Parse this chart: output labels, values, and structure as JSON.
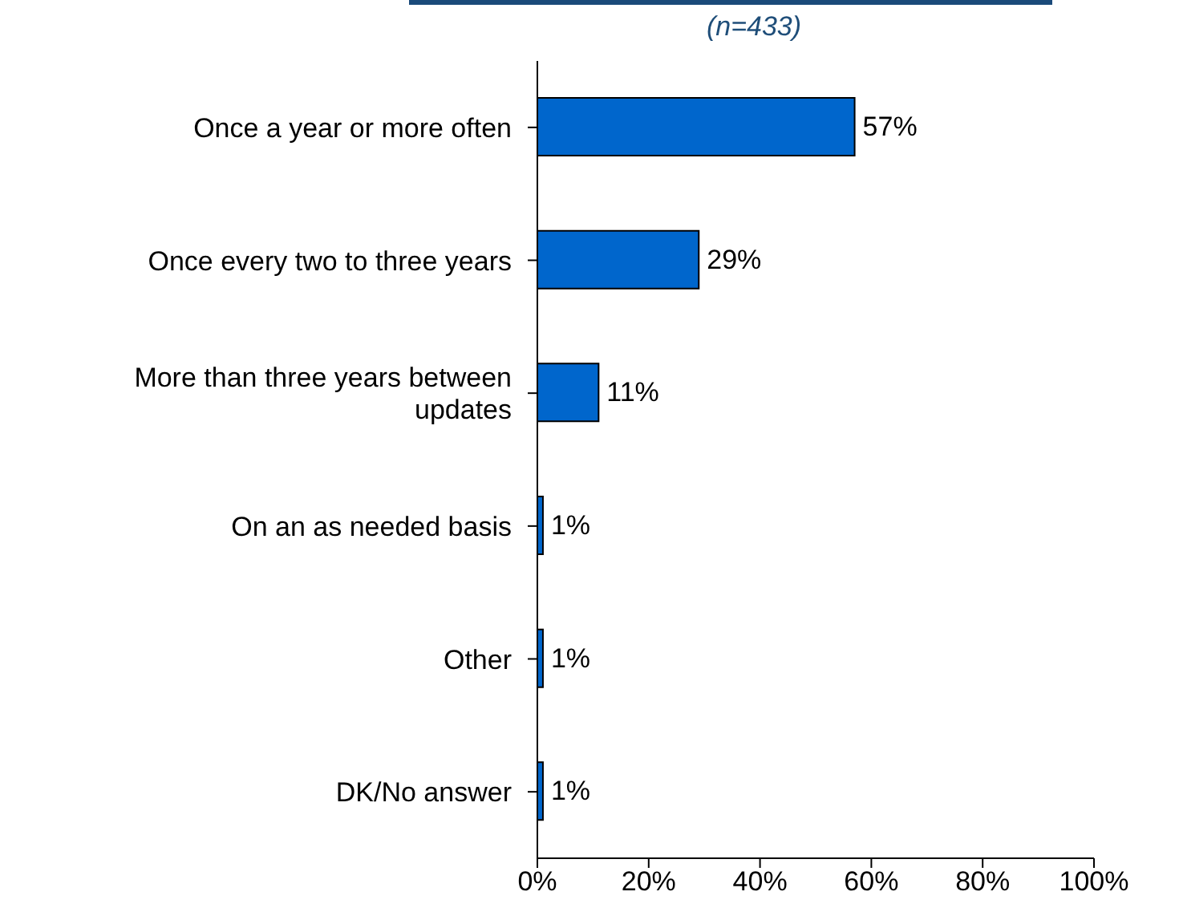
{
  "chart_data": {
    "type": "bar",
    "orientation": "horizontal",
    "subtitle": "(n=433)",
    "categories": [
      "Once a year or more often",
      "Once every two to three years",
      "More than three years between updates",
      "On an as needed basis",
      "Other",
      "DK/No answer"
    ],
    "values": [
      57,
      29,
      11,
      1,
      1,
      1
    ],
    "value_labels": [
      "57%",
      "29%",
      "11%",
      "1%",
      "1%",
      "1%"
    ],
    "color": "#0066cc",
    "xlim": [
      0,
      100
    ],
    "xticks": [
      {
        "value": 0,
        "label": "0%"
      },
      {
        "value": 20,
        "label": "20%"
      },
      {
        "value": 40,
        "label": "40%"
      },
      {
        "value": 60,
        "label": "60%"
      },
      {
        "value": 80,
        "label": "80%"
      },
      {
        "value": 100,
        "label": "100%"
      }
    ],
    "grid": false,
    "legend": false
  }
}
